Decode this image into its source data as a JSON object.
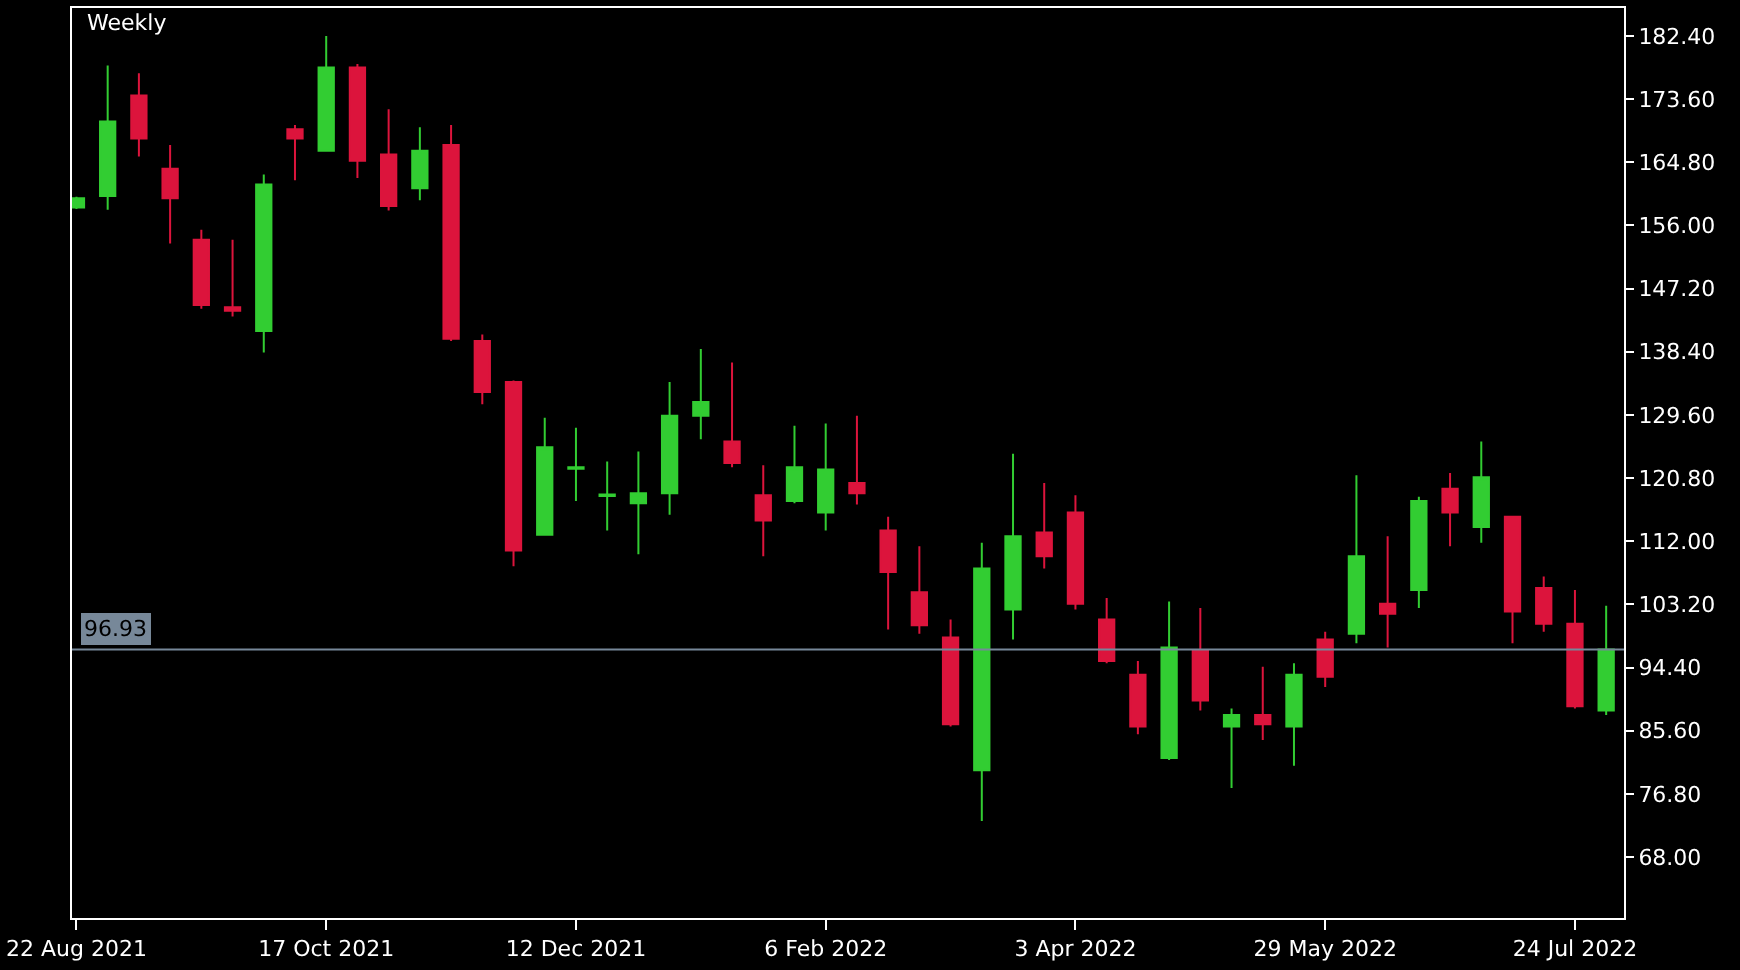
{
  "chart_data": {
    "type": "candlestick",
    "title": "Weekly",
    "x": [
      "2021-08-22",
      "2021-08-29",
      "2021-09-05",
      "2021-09-12",
      "2021-09-19",
      "2021-09-26",
      "2021-10-03",
      "2021-10-10",
      "2021-10-17",
      "2021-10-24",
      "2021-10-31",
      "2021-11-07",
      "2021-11-14",
      "2021-11-21",
      "2021-11-28",
      "2021-12-05",
      "2021-12-12",
      "2021-12-19",
      "2021-12-26",
      "2022-01-02",
      "2022-01-09",
      "2022-01-16",
      "2022-01-23",
      "2022-01-30",
      "2022-02-06",
      "2022-02-13",
      "2022-02-20",
      "2022-02-27",
      "2022-03-06",
      "2022-03-13",
      "2022-03-20",
      "2022-03-27",
      "2022-04-03",
      "2022-04-10",
      "2022-04-17",
      "2022-04-24",
      "2022-05-01",
      "2022-05-08",
      "2022-05-15",
      "2022-05-22",
      "2022-05-29",
      "2022-06-05",
      "2022-06-12",
      "2022-06-19",
      "2022-06-26",
      "2022-07-03",
      "2022-07-10",
      "2022-07-17",
      "2022-07-24",
      "2022-07-31"
    ],
    "ohlc": [
      [
        158.5,
        160.0,
        158.3,
        159.8
      ],
      [
        160.1,
        178.3,
        158.2,
        170.5
      ],
      [
        174.1,
        177.2,
        165.6,
        168.1
      ],
      [
        163.9,
        167.2,
        153.5,
        159.8
      ],
      [
        154.0,
        155.4,
        144.4,
        144.9
      ],
      [
        144.6,
        154.0,
        143.3,
        144.1
      ],
      [
        141.3,
        163.1,
        138.3,
        161.7
      ],
      [
        169.4,
        170.0,
        162.3,
        168.1
      ],
      [
        166.4,
        182.4,
        166.4,
        178.0
      ],
      [
        178.0,
        178.5,
        162.6,
        165.0
      ],
      [
        165.9,
        172.2,
        158.1,
        158.7
      ],
      [
        161.2,
        169.7,
        159.5,
        166.4
      ],
      [
        167.2,
        170.0,
        139.9,
        140.2
      ],
      [
        139.9,
        140.8,
        131.1,
        132.8
      ],
      [
        134.2,
        134.4,
        108.5,
        110.7
      ],
      [
        112.9,
        129.2,
        112.9,
        125.1
      ],
      [
        122.1,
        127.8,
        117.6,
        122.3
      ],
      [
        118.3,
        123.1,
        113.5,
        118.5
      ],
      [
        117.3,
        124.5,
        110.2,
        118.7
      ],
      [
        118.7,
        134.2,
        115.7,
        129.5
      ],
      [
        129.5,
        138.8,
        126.2,
        131.4
      ],
      [
        125.9,
        136.9,
        122.3,
        122.9
      ],
      [
        118.4,
        122.6,
        109.9,
        114.9
      ],
      [
        117.6,
        128.1,
        117.3,
        122.3
      ],
      [
        116.0,
        128.4,
        113.5,
        122.0
      ],
      [
        120.1,
        129.5,
        117.1,
        118.7
      ],
      [
        113.5,
        115.4,
        99.7,
        107.7
      ],
      [
        104.9,
        111.3,
        99.1,
        100.3
      ],
      [
        98.6,
        101.1,
        86.2,
        86.5
      ],
      [
        80.1,
        111.8,
        73.0,
        108.2
      ],
      [
        102.5,
        124.2,
        98.3,
        112.7
      ],
      [
        113.2,
        120.1,
        108.2,
        109.9
      ],
      [
        116.0,
        118.4,
        102.5,
        103.3
      ],
      [
        101.1,
        104.1,
        95.0,
        95.3
      ],
      [
        93.4,
        95.3,
        85.1,
        86.2
      ],
      [
        81.8,
        103.6,
        81.5,
        97.2
      ],
      [
        96.7,
        102.7,
        88.4,
        89.8
      ],
      [
        86.2,
        88.7,
        77.6,
        87.8
      ],
      [
        87.8,
        94.5,
        84.3,
        86.5
      ],
      [
        86.2,
        95.0,
        80.7,
        93.4
      ],
      [
        98.3,
        99.4,
        91.7,
        93.1
      ],
      [
        99.1,
        121.2,
        97.8,
        109.9
      ],
      [
        103.3,
        112.7,
        97.2,
        101.9
      ],
      [
        105.2,
        118.2,
        102.7,
        117.6
      ],
      [
        119.3,
        121.5,
        111.3,
        116.0
      ],
      [
        114.0,
        125.9,
        111.8,
        120.9
      ],
      [
        115.4,
        115.4,
        97.8,
        102.2
      ],
      [
        105.5,
        107.1,
        99.4,
        100.5
      ],
      [
        100.5,
        105.2,
        88.7,
        89.0
      ],
      [
        88.4,
        103.0,
        87.8,
        96.93
      ]
    ],
    "colors": [
      "#32cd32",
      "#32cd32",
      "#dc143c",
      "#dc143c",
      "#dc143c",
      "#dc143c",
      "#32cd32",
      "#dc143c",
      "#32cd32",
      "#dc143c",
      "#dc143c",
      "#32cd32",
      "#dc143c",
      "#dc143c",
      "#dc143c",
      "#32cd32",
      "#32cd32",
      "#32cd32",
      "#32cd32",
      "#32cd32",
      "#32cd32",
      "#dc143c",
      "#dc143c",
      "#32cd32",
      "#32cd32",
      "#dc143c",
      "#dc143c",
      "#dc143c",
      "#dc143c",
      "#32cd32",
      "#32cd32",
      "#dc143c",
      "#dc143c",
      "#dc143c",
      "#dc143c",
      "#32cd32",
      "#dc143c",
      "#32cd32",
      "#dc143c",
      "#32cd32",
      "#dc143c",
      "#32cd32",
      "#dc143c",
      "#32cd32",
      "#dc143c",
      "#32cd32",
      "#dc143c",
      "#dc143c",
      "#dc143c",
      "#32cd32"
    ],
    "xlim": [
      "2021-08-21",
      "2022-08-04"
    ],
    "xticks": [
      {
        "value": "2021-08-22",
        "label": "22 Aug 2021"
      },
      {
        "value": "2021-10-17",
        "label": "17 Oct 2021"
      },
      {
        "value": "2021-12-12",
        "label": "12 Dec 2021"
      },
      {
        "value": "2022-02-06",
        "label": "6 Feb 2022"
      },
      {
        "value": "2022-04-03",
        "label": "3 Apr 2022"
      },
      {
        "value": "2022-05-29",
        "label": "29 May 2022"
      },
      {
        "value": "2022-07-24",
        "label": "24 Jul 2022"
      }
    ],
    "ylim": [
      59.5,
      186.3
    ],
    "yticks": [
      {
        "value": 68,
        "label": "68.00"
      },
      {
        "value": 76.8,
        "label": "76.80"
      },
      {
        "value": 85.6,
        "label": "85.60"
      },
      {
        "value": 94.4,
        "label": "94.40"
      },
      {
        "value": 103.2,
        "label": "103.20"
      },
      {
        "value": 112,
        "label": "112.00"
      },
      {
        "value": 120.8,
        "label": "120.80"
      },
      {
        "value": 129.6,
        "label": "129.60"
      },
      {
        "value": 138.4,
        "label": "138.40"
      },
      {
        "value": 147.2,
        "label": "147.20"
      },
      {
        "value": 156,
        "label": "156.00"
      },
      {
        "value": 164.8,
        "label": "164.80"
      },
      {
        "value": 173.6,
        "label": "173.60"
      },
      {
        "value": 182.4,
        "label": "182.40"
      }
    ],
    "ref_lines": [
      {
        "axis": "y",
        "value": 96.93,
        "label": "96.93",
        "color": "#778899"
      }
    ],
    "grid": false
  }
}
